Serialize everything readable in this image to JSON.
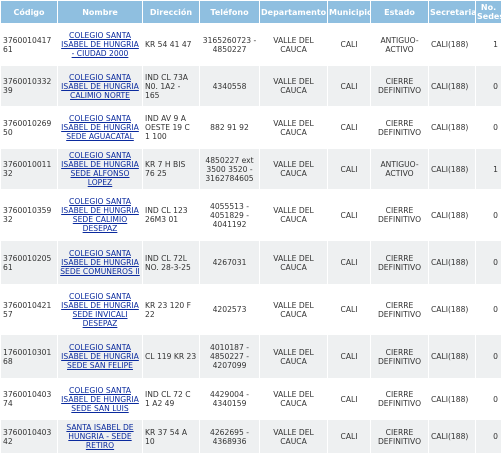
{
  "headers": {
    "codigo": "Código",
    "nombre": "Nombre",
    "direccion": "Dirección",
    "telefono": "Teléfono",
    "departamento": "Departamento",
    "municipio": "Municipio",
    "estado": "Estado",
    "secretaria": "Secretaria",
    "sedes": "No. Sedes"
  },
  "rows": [
    {
      "codigo": "376001041761",
      "nombre": "COLEGIO SANTA ISABEL DE HUNGRIA - CIUDAD 2000",
      "direccion": "KR 54 41 47",
      "telefono": "3165260723 - 4850227",
      "departamento": "VALLE DEL CAUCA",
      "municipio": "CALI",
      "estado": "ANTIGUO-ACTIVO",
      "secretaria": "CALI(188)",
      "sedes": "1"
    },
    {
      "codigo": "376001033239",
      "nombre": "COLEGIO SANTA ISABEL DE HUNGRIA CALIMIO NORTE",
      "direccion": "IND CL 73A N0. 1A2 - 165",
      "telefono": "4340558",
      "departamento": "VALLE DEL CAUCA",
      "municipio": "CALI",
      "estado": "CIERRE DEFINITIVO",
      "secretaria": "CALI(188)",
      "sedes": "0"
    },
    {
      "codigo": "376001026950",
      "nombre": "COLEGIO SANTA ISABEL DE HUNGRIA SEDE AGUACATAL",
      "direccion": "IND AV 9 A OESTE 19 C 1 100",
      "telefono": "882 91 92",
      "departamento": "VALLE DEL CAUCA",
      "municipio": "CALI",
      "estado": "CIERRE DEFINITIVO",
      "secretaria": "CALI(188)",
      "sedes": "0"
    },
    {
      "codigo": "376001001132",
      "nombre": "COLEGIO SANTA ISABEL DE HUNGRIA SEDE ALFONSO LOPEZ",
      "direccion": "KR 7 H BIS 76 25",
      "telefono": "4850227 ext 3500 3520 - 3162784605",
      "departamento": "VALLE DEL CAUCA",
      "municipio": "CALI",
      "estado": "ANTIGUO-ACTIVO",
      "secretaria": "CALI(188)",
      "sedes": "1"
    },
    {
      "codigo": "376001035932",
      "nombre": "COLEGIO SANTA ISABEL DE HUNGRIA SEDE CALIMIO DESEPAZ",
      "direccion": "IND CL 123 26M3 01",
      "telefono": "4055513 - 4051829 - 4041192",
      "departamento": "VALLE DEL CAUCA",
      "municipio": "CALI",
      "estado": "CIERRE DEFINITIVO",
      "secretaria": "CALI(188)",
      "sedes": "0"
    },
    {
      "codigo": "376001020561",
      "nombre": "COLEGIO SANTA ISABEL DE HUNGRIA SEDE COMUNEROS II",
      "direccion": "IND CL 72L NO. 28-3-25",
      "telefono": "4267031",
      "departamento": "VALLE DEL CAUCA",
      "municipio": "CALI",
      "estado": "CIERRE DEFINITIVO",
      "secretaria": "CALI(188)",
      "sedes": "0"
    },
    {
      "codigo": "376001042157",
      "nombre": "COLEGIO SANTA ISABEL DE HUNGRIA SEDE INVICALI DESEPAZ",
      "direccion": "KR 23 120 F 22",
      "telefono": "4202573",
      "departamento": "VALLE DEL CAUCA",
      "municipio": "CALI",
      "estado": "CIERRE DEFINITIVO",
      "secretaria": "CALI(188)",
      "sedes": "0"
    },
    {
      "codigo": "176001030168",
      "nombre": "COLEGIO SANTA ISABEL DE HUNGRIA SEDE SAN FELIPE",
      "direccion": "CL 119 KR 23",
      "telefono": "4010187 - 4850227 - 4207099",
      "departamento": "VALLE DEL CAUCA",
      "municipio": "CALI",
      "estado": "CIERRE DEFINITIVO",
      "secretaria": "CALI(188)",
      "sedes": "0"
    },
    {
      "codigo": "376001040374",
      "nombre": "COLEGIO SANTA ISABEL DE HUNGRIA SEDE SAN LUIS",
      "direccion": "IND CL 72 C 1 A2 49",
      "telefono": "4429004 - 4340159",
      "departamento": "VALLE DEL CAUCA",
      "municipio": "CALI",
      "estado": "CIERRE DEFINITIVO",
      "secretaria": "CALI(188)",
      "sedes": "0"
    },
    {
      "codigo": "376001040342",
      "nombre": "SANTA ISABEL DE HUNGRIA - SEDE RETIRO",
      "direccion": "KR 37 54 A 10",
      "telefono": "4262695 - 4368936",
      "departamento": "VALLE DEL CAUCA",
      "municipio": "CALI",
      "estado": "CIERRE DEFINITIVO",
      "secretaria": "CALI(188)",
      "sedes": "0"
    }
  ],
  "colors": {
    "header_bg": "#8fbfe0",
    "row_alt_bg": "#eef0f1",
    "link": "#0a2a9e"
  }
}
